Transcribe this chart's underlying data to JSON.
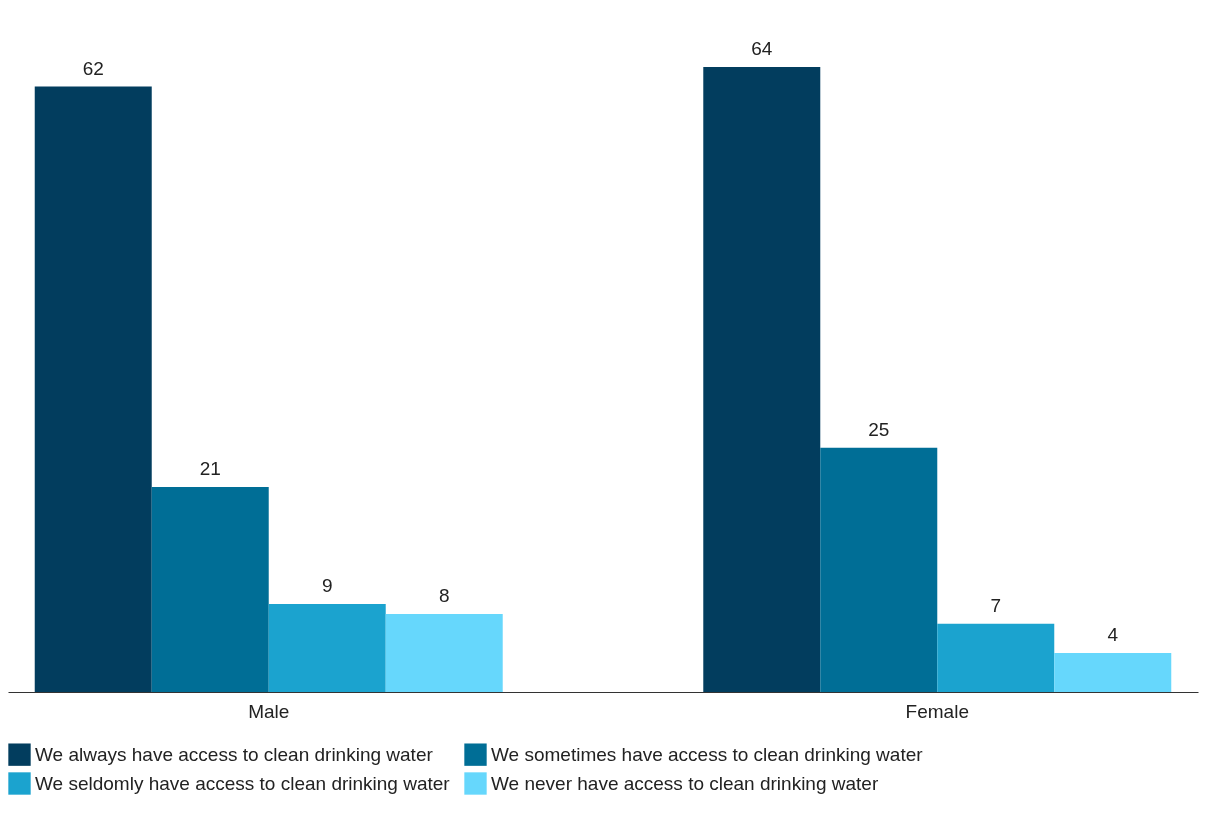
{
  "chart_data": {
    "type": "bar",
    "categories": [
      "Male",
      "Female"
    ],
    "series": [
      {
        "name": "We always have access to clean drinking water",
        "color": "#023d5e",
        "values": [
          62,
          64
        ]
      },
      {
        "name": "We sometimes have access to clean drinking water",
        "color": "#006e96",
        "values": [
          21,
          25
        ]
      },
      {
        "name": "We seldomly have access to clean drinking water",
        "color": "#1ba3cf",
        "values": [
          9,
          7
        ]
      },
      {
        "name": "We never have access to clean drinking water",
        "color": "#66d7fc",
        "values": [
          8,
          4
        ]
      }
    ],
    "data_labels": true,
    "legend": "bottom",
    "tick_labels": "x"
  }
}
